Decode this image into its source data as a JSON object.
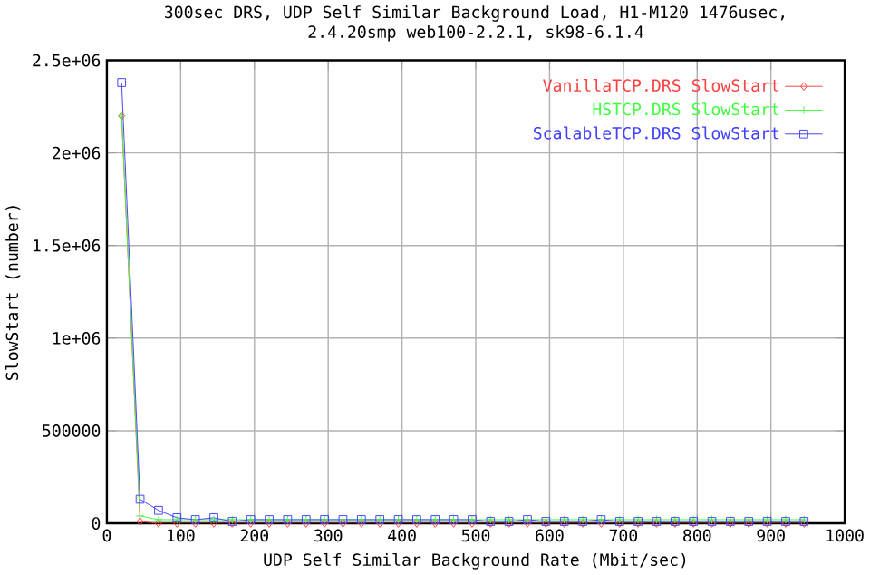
{
  "chart_data": {
    "type": "line",
    "title": "300sec DRS, UDP Self Similar Background Load, H1-M120 1476usec,",
    "subtitle": "2.4.20smp web100-2.2.1, sk98-6.1.4",
    "xlabel": "UDP Self Similar Background Rate (Mbit/sec)",
    "ylabel": "SlowStart (number)",
    "xlim": [
      0,
      1000
    ],
    "ylim": [
      0,
      2500000
    ],
    "xticks": [
      0,
      100,
      200,
      300,
      400,
      500,
      600,
      700,
      800,
      900,
      1000
    ],
    "yticks": [
      0,
      500000,
      {
        "value": 1000000,
        "label": "1e+06"
      },
      {
        "value": 1500000,
        "label": "1.5e+06"
      },
      {
        "value": 2000000,
        "label": "2e+06"
      },
      {
        "value": 2500000,
        "label": "2.5e+06"
      }
    ],
    "grid": true,
    "legend": "top right",
    "line_style": "solid",
    "x": [
      20,
      45,
      70,
      95,
      120,
      145,
      170,
      195,
      220,
      245,
      270,
      295,
      320,
      345,
      370,
      395,
      420,
      445,
      470,
      495,
      520,
      545,
      570,
      595,
      620,
      645,
      670,
      695,
      720,
      745,
      770,
      795,
      820,
      845,
      870,
      895,
      920,
      945
    ],
    "series": [
      {
        "name": "VanillaTCP.DRS SlowStart",
        "color": "#ff4040",
        "marker": "diamond",
        "values": [
          2200000,
          10000,
          0,
          0,
          0,
          0,
          0,
          0,
          0,
          0,
          0,
          0,
          0,
          0,
          0,
          0,
          0,
          0,
          0,
          0,
          0,
          0,
          0,
          0,
          0,
          0,
          0,
          0,
          0,
          0,
          0,
          0,
          0,
          0,
          0,
          0,
          0,
          0
        ]
      },
      {
        "name": "HSTCP.DRS SlowStart",
        "color": "#40ff40",
        "marker": "cross",
        "values": [
          2200000,
          40000,
          20000,
          20000,
          20000,
          20000,
          20000,
          20000,
          20000,
          20000,
          20000,
          20000,
          20000,
          20000,
          20000,
          20000,
          20000,
          20000,
          20000,
          20000,
          20000,
          20000,
          20000,
          20000,
          20000,
          20000,
          20000,
          20000,
          20000,
          20000,
          20000,
          20000,
          20000,
          20000,
          20000,
          20000,
          20000,
          20000
        ]
      },
      {
        "name": "ScalableTCP.DRS SlowStart",
        "color": "#4040ff",
        "marker": "square",
        "values": [
          2380000,
          130000,
          70000,
          30000,
          20000,
          30000,
          10000,
          20000,
          20000,
          20000,
          20000,
          20000,
          20000,
          20000,
          20000,
          20000,
          20000,
          20000,
          20000,
          20000,
          10000,
          10000,
          20000,
          10000,
          10000,
          10000,
          20000,
          10000,
          10000,
          10000,
          10000,
          10000,
          10000,
          10000,
          10000,
          10000,
          10000,
          10000
        ]
      }
    ]
  }
}
